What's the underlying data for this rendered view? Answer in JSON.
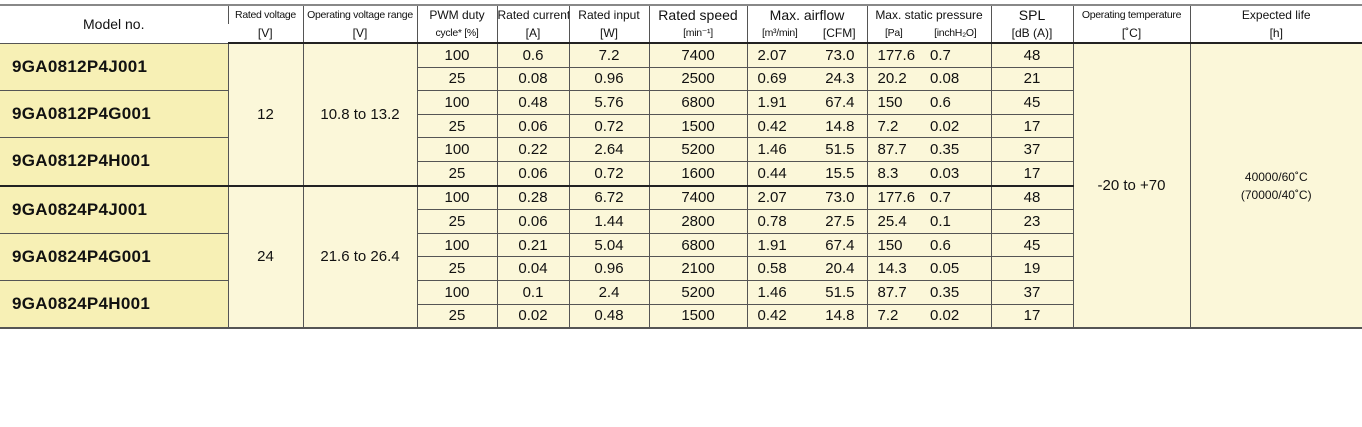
{
  "headers": {
    "model": "Model no.",
    "rated_voltage": [
      "Rated voltage",
      "[V]"
    ],
    "op_voltage": [
      "Operating voltage range",
      "[V]"
    ],
    "pwm": [
      "PWM duty",
      "cycle* [%]"
    ],
    "current": [
      "Rated current",
      "[A]"
    ],
    "input": [
      "Rated input",
      "[W]"
    ],
    "speed": [
      "Rated speed",
      "[min⁻¹]"
    ],
    "airflow": [
      "Max. airflow",
      "[m³/min]",
      "[CFM]"
    ],
    "pressure": [
      "Max. static pressure",
      "[Pa]",
      "[inchH₂O]"
    ],
    "spl": [
      "SPL",
      "[dB (A)]"
    ],
    "temp": [
      "Operating temperature",
      "[˚C]"
    ],
    "life": [
      "Expected life",
      "[h]"
    ]
  },
  "operating_temperature": "-20 to +70",
  "expected_life": [
    "40000/60˚C",
    "(70000/40˚C)"
  ],
  "groups": [
    {
      "rated_voltage": "12",
      "op_range": "10.8 to 13.2",
      "models": [
        {
          "name": "9GA0812P4J001",
          "rows": [
            [
              "100",
              "0.6",
              "7.2",
              "7400",
              "2.07",
              "73.0",
              "177.6",
              "0.7",
              "48"
            ],
            [
              "25",
              "0.08",
              "0.96",
              "2500",
              "0.69",
              "24.3",
              "20.2",
              "0.08",
              "21"
            ]
          ]
        },
        {
          "name": "9GA0812P4G001",
          "rows": [
            [
              "100",
              "0.48",
              "5.76",
              "6800",
              "1.91",
              "67.4",
              "150",
              "0.6",
              "45"
            ],
            [
              "25",
              "0.06",
              "0.72",
              "1500",
              "0.42",
              "14.8",
              "7.2",
              "0.02",
              "17"
            ]
          ]
        },
        {
          "name": "9GA0812P4H001",
          "rows": [
            [
              "100",
              "0.22",
              "2.64",
              "5200",
              "1.46",
              "51.5",
              "87.7",
              "0.35",
              "37"
            ],
            [
              "25",
              "0.06",
              "0.72",
              "1600",
              "0.44",
              "15.5",
              "8.3",
              "0.03",
              "17"
            ]
          ]
        }
      ]
    },
    {
      "rated_voltage": "24",
      "op_range": "21.6 to 26.4",
      "models": [
        {
          "name": "9GA0824P4J001",
          "rows": [
            [
              "100",
              "0.28",
              "6.72",
              "7400",
              "2.07",
              "73.0",
              "177.6",
              "0.7",
              "48"
            ],
            [
              "25",
              "0.06",
              "1.44",
              "2800",
              "0.78",
              "27.5",
              "25.4",
              "0.1",
              "23"
            ]
          ]
        },
        {
          "name": "9GA0824P4G001",
          "rows": [
            [
              "100",
              "0.21",
              "5.04",
              "6800",
              "1.91",
              "67.4",
              "150",
              "0.6",
              "45"
            ],
            [
              "25",
              "0.04",
              "0.96",
              "2100",
              "0.58",
              "20.4",
              "14.3",
              "0.05",
              "19"
            ]
          ]
        },
        {
          "name": "9GA0824P4H001",
          "rows": [
            [
              "100",
              "0.1",
              "2.4",
              "5200",
              "1.46",
              "51.5",
              "87.7",
              "0.35",
              "37"
            ],
            [
              "25",
              "0.02",
              "0.48",
              "1500",
              "0.42",
              "14.8",
              "7.2",
              "0.02",
              "17"
            ]
          ]
        }
      ]
    }
  ]
}
